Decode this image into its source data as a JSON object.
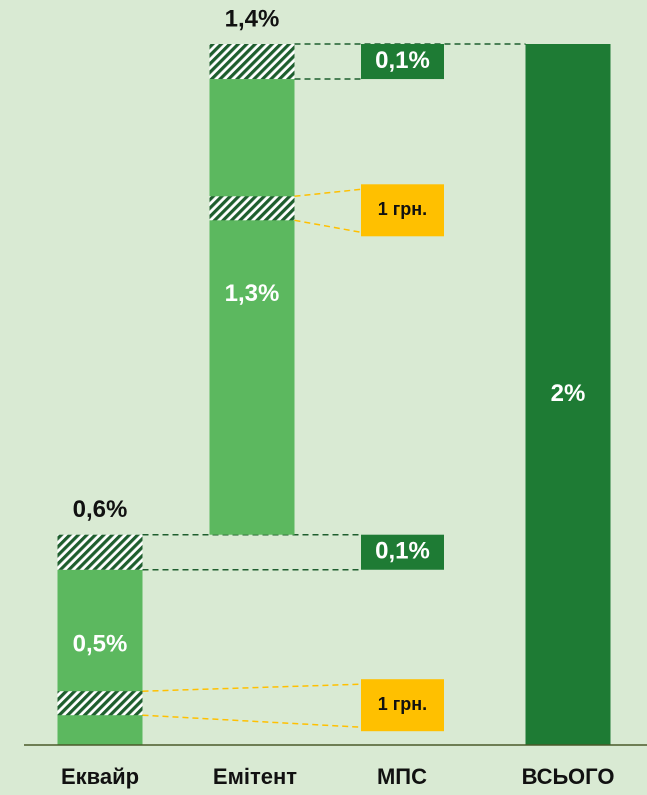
{
  "chart_data": {
    "type": "waterfall",
    "categories": [
      "Еквайр",
      "Емітент",
      "МПС",
      "ВСЬОГО"
    ],
    "ylim": [
      0,
      2
    ],
    "acquirer": {
      "value": 0.5,
      "label": "0,5%",
      "mps_fee": 0.1,
      "mps_label": "0,1%",
      "total": 0.6,
      "total_label": "0,6%",
      "fixed_fee": "1 грн."
    },
    "issuer": {
      "value": 1.3,
      "label": "1,3%",
      "mps_fee": 0.1,
      "mps_label": "0,1%",
      "total": 1.4,
      "total_label": "1,4%",
      "fixed_fee": "1 грн."
    },
    "total": {
      "value": 2,
      "label": "2%"
    },
    "colors": {
      "background": "#d9ead3",
      "segment": "#5cb85f",
      "total": "#1e7b34",
      "fee_box": "#1e7b34",
      "fixed_box": "#ffc000"
    }
  }
}
